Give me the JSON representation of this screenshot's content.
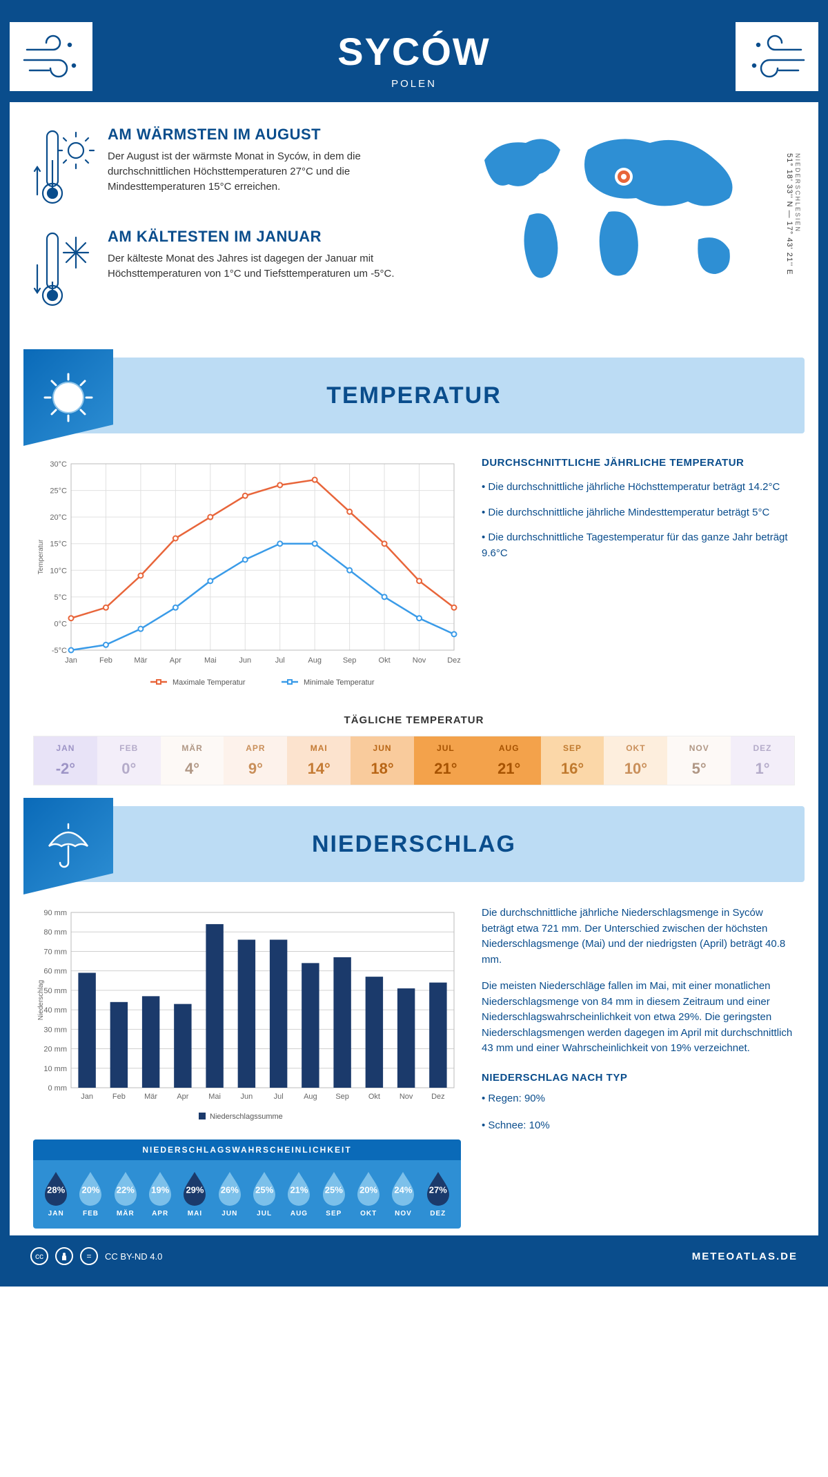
{
  "header": {
    "city": "SYCÓW",
    "country": "POLEN"
  },
  "coords": {
    "text": "51° 18' 33'' N — 17° 43' 21'' E",
    "region": "NIEDERSCHLESIEN"
  },
  "warm": {
    "title": "AM WÄRMSTEN IM AUGUST",
    "body": "Der August ist der wärmste Monat in Syców, in dem die durchschnittlichen Höchsttemperaturen 27°C und die Mindesttemperaturen 15°C erreichen."
  },
  "cold": {
    "title": "AM KÄLTESTEN IM JANUAR",
    "body": "Der kälteste Monat des Jahres ist dagegen der Januar mit Höchsttemperaturen von 1°C und Tiefsttemperaturen um -5°C."
  },
  "temp_banner": "TEMPERATUR",
  "precip_banner": "NIEDERSCHLAG",
  "temp_chart": {
    "type": "line",
    "months": [
      "Jan",
      "Feb",
      "Mär",
      "Apr",
      "Mai",
      "Jun",
      "Jul",
      "Aug",
      "Sep",
      "Okt",
      "Nov",
      "Dez"
    ],
    "max_series": {
      "label": "Maximale Temperatur",
      "color": "#e8653a",
      "data": [
        1,
        3,
        9,
        16,
        20,
        24,
        26,
        27,
        21,
        15,
        8,
        3
      ]
    },
    "min_series": {
      "label": "Minimale Temperatur",
      "color": "#3a9be8",
      "data": [
        -5,
        -4,
        -1,
        3,
        8,
        12,
        15,
        15,
        10,
        5,
        1,
        -2
      ]
    },
    "yaxis": {
      "label": "Temperatur",
      "min": -5,
      "max": 30,
      "step": 5,
      "suffix": "°C"
    },
    "grid_color": "#e0e0e0",
    "line_width": 2.5,
    "marker_radius": 3.5,
    "background": "#ffffff"
  },
  "temp_info": {
    "title": "DURCHSCHNITTLICHE JÄHRLICHE TEMPERATUR",
    "bullets": [
      "• Die durchschnittliche jährliche Höchsttemperatur beträgt 14.2°C",
      "• Die durchschnittliche jährliche Mindesttemperatur beträgt 5°C",
      "• Die durchschnittliche Tagestemperatur für das ganze Jahr beträgt 9.6°C"
    ]
  },
  "daily_title": "TÄGLICHE TEMPERATUR",
  "daily": {
    "months": [
      "JAN",
      "FEB",
      "MÄR",
      "APR",
      "MAI",
      "JUN",
      "JUL",
      "AUG",
      "SEP",
      "OKT",
      "NOV",
      "DEZ"
    ],
    "values": [
      "-2°",
      "0°",
      "4°",
      "9°",
      "14°",
      "18°",
      "21°",
      "21°",
      "16°",
      "10°",
      "5°",
      "1°"
    ],
    "bg_colors": [
      "#e8e3f7",
      "#f3eef9",
      "#fdf9f6",
      "#fdf2eb",
      "#fce3ce",
      "#f9cb9c",
      "#f3a24b",
      "#f3a24b",
      "#fbd7a8",
      "#fdeedd",
      "#fdf9f6",
      "#f3eef9"
    ],
    "text_colors": [
      "#9d94c6",
      "#b4abc9",
      "#b09785",
      "#c98f5a",
      "#c47a33",
      "#b86514",
      "#a65200",
      "#a65200",
      "#c07a2e",
      "#c98f5a",
      "#b09785",
      "#b4abc9"
    ]
  },
  "precip_chart": {
    "type": "bar",
    "months": [
      "Jan",
      "Feb",
      "Mär",
      "Apr",
      "Mai",
      "Jun",
      "Jul",
      "Aug",
      "Sep",
      "Okt",
      "Nov",
      "Dez"
    ],
    "values": [
      59,
      44,
      47,
      43,
      84,
      76,
      76,
      64,
      67,
      57,
      51,
      54
    ],
    "bar_color": "#1b3a6b",
    "yaxis": {
      "label": "Niederschlag",
      "min": 0,
      "max": 90,
      "step": 10,
      "suffix": " mm"
    },
    "grid_color": "#d0d0d0",
    "legend": "Niederschlagssumme",
    "bar_width": 0.55
  },
  "precip_info": {
    "p1": "Die durchschnittliche jährliche Niederschlagsmenge in Syców beträgt etwa 721 mm. Der Unterschied zwischen der höchsten Niederschlagsmenge (Mai) und der niedrigsten (April) beträgt 40.8 mm.",
    "p2": "Die meisten Niederschläge fallen im Mai, mit einer monatlichen Niederschlagsmenge von 84 mm in diesem Zeitraum und einer Niederschlagswahrscheinlichkeit von etwa 29%. Die geringsten Niederschlagsmengen werden dagegen im April mit durchschnittlich 43 mm und einer Wahrscheinlichkeit von 19% verzeichnet.",
    "type_title": "NIEDERSCHLAG NACH TYP",
    "type_bullets": [
      "• Regen: 90%",
      "• Schnee: 10%"
    ]
  },
  "prob": {
    "title": "NIEDERSCHLAGSWAHRSCHEINLICHKEIT",
    "months": [
      "JAN",
      "FEB",
      "MÄR",
      "APR",
      "MAI",
      "JUN",
      "JUL",
      "AUG",
      "SEP",
      "OKT",
      "NOV",
      "DEZ"
    ],
    "values": [
      "28%",
      "20%",
      "22%",
      "19%",
      "29%",
      "26%",
      "25%",
      "21%",
      "25%",
      "20%",
      "24%",
      "27%"
    ],
    "drop_dark": "#1b3a6b",
    "drop_light": "#7cc0ea",
    "highlight_indices": [
      0,
      4,
      11
    ]
  },
  "footer": {
    "license": "CC BY-ND 4.0",
    "site": "METEOATLAS.DE"
  },
  "colors": {
    "primary": "#0a4d8c",
    "banner_bg": "#bcdcf4",
    "banner_icon": "#2e8fd4"
  }
}
